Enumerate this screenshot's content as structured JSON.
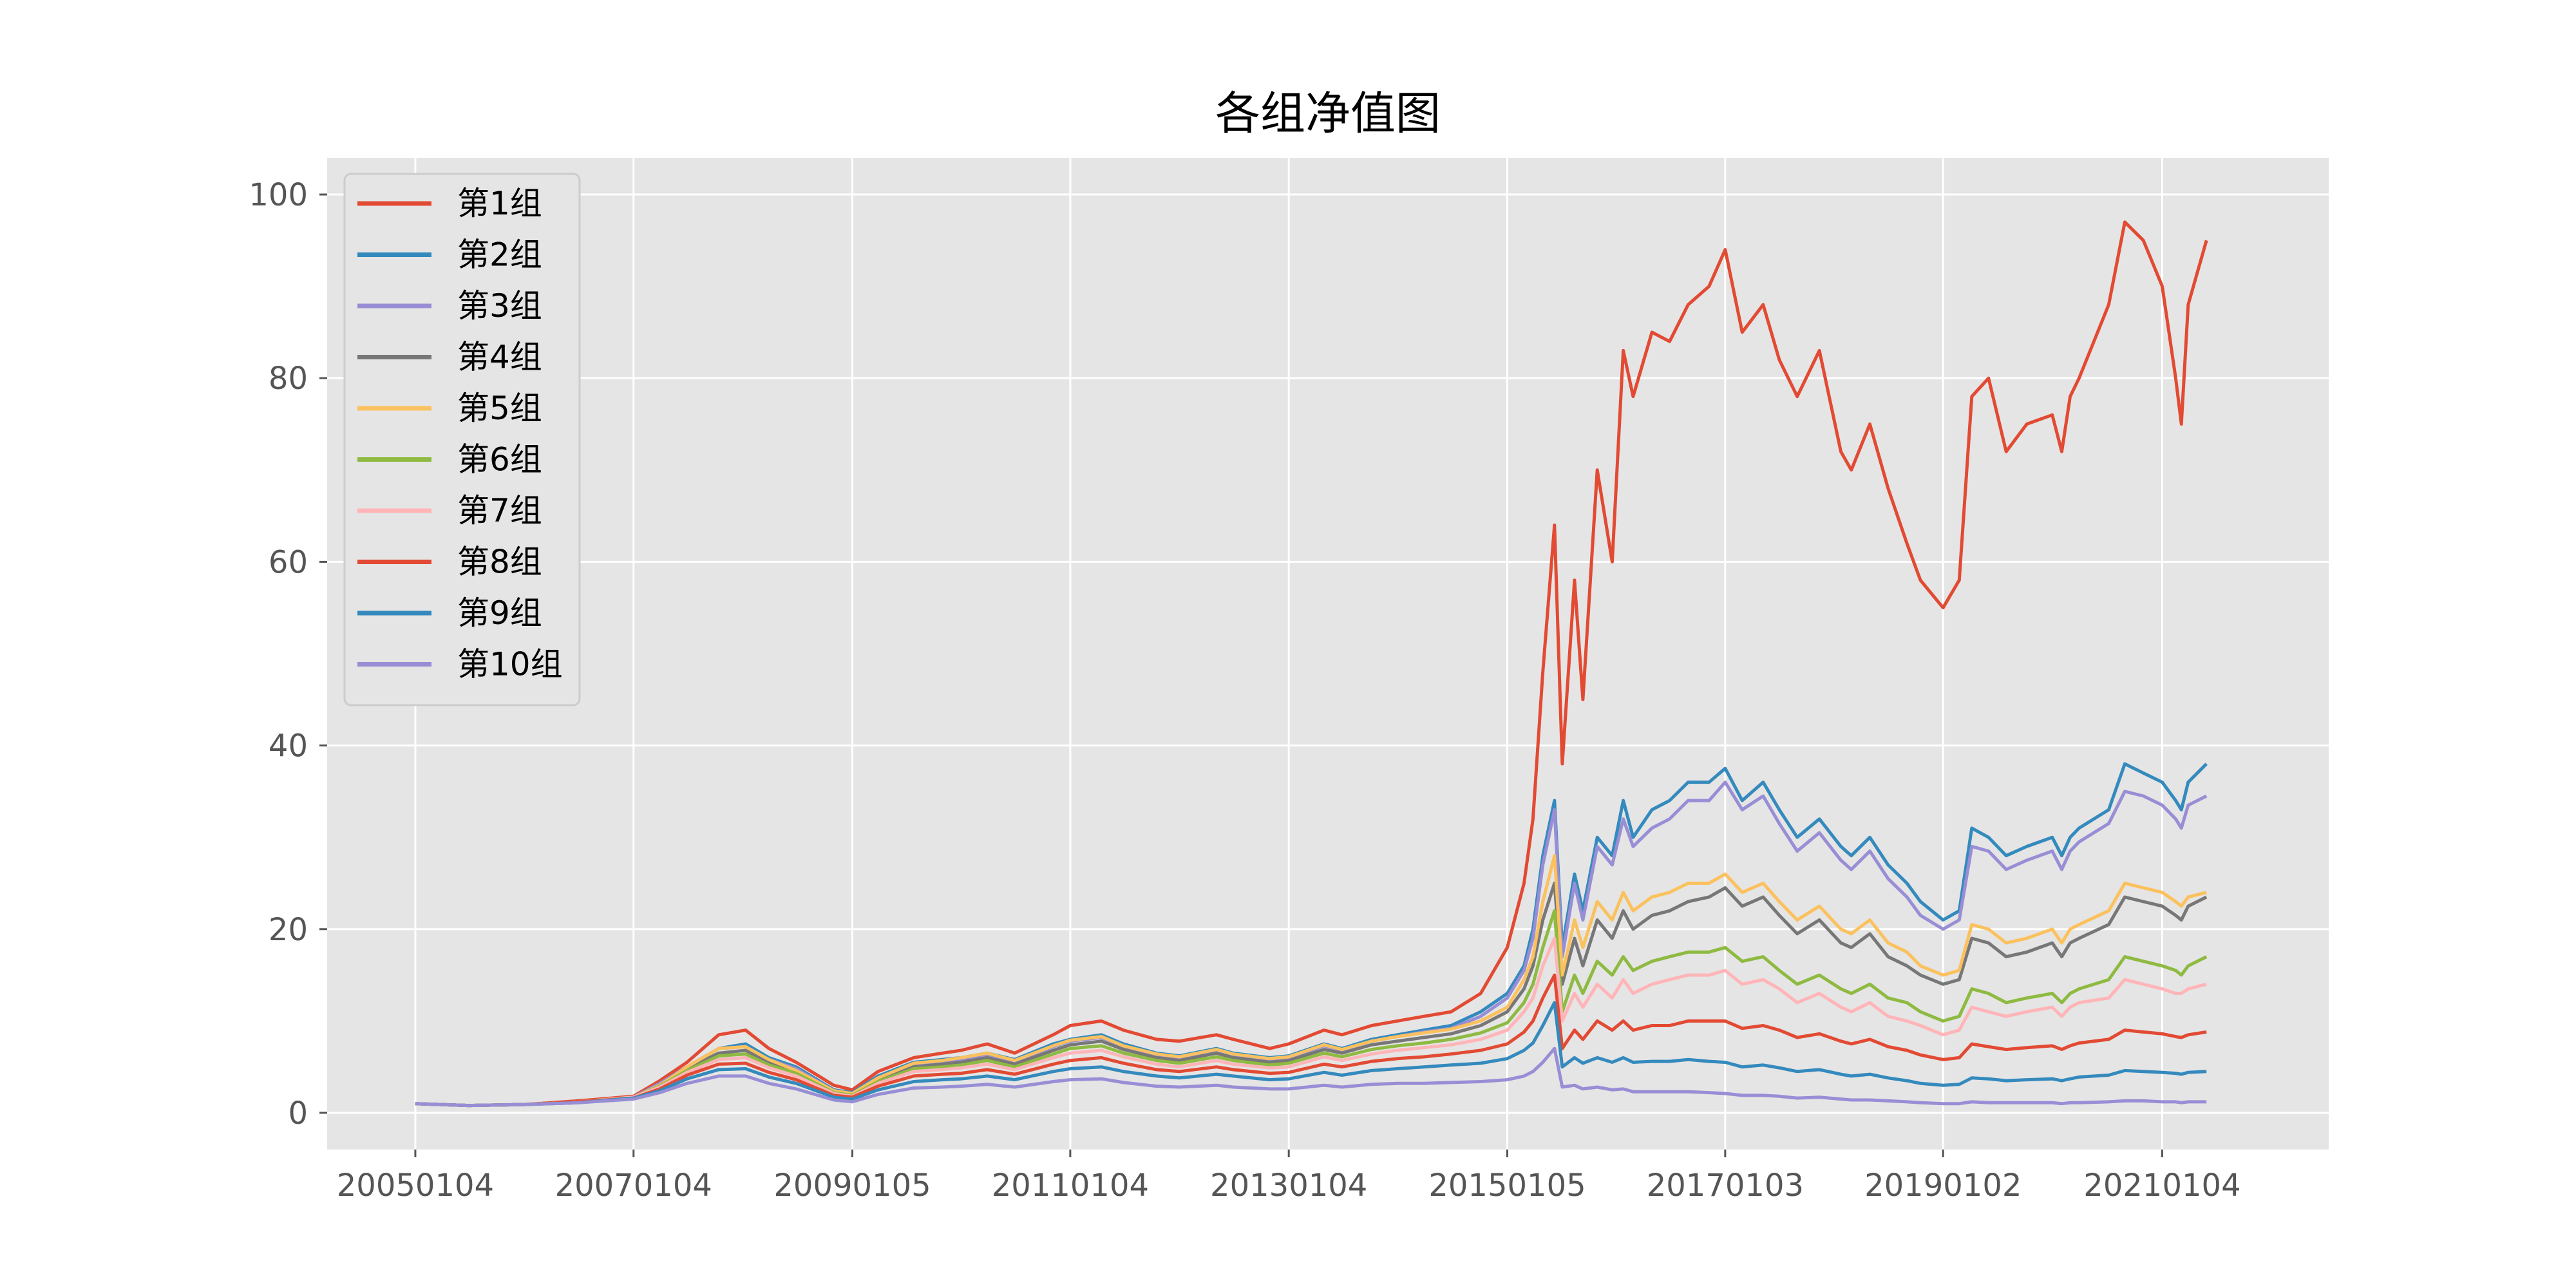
{
  "chart_data": {
    "type": "line",
    "title": "各组净值图",
    "xlabel": "",
    "ylabel": "",
    "x_tick_labels": [
      "20050104",
      "20070104",
      "20090105",
      "20110104",
      "20130104",
      "20150105",
      "20170103",
      "20190102",
      "20210104"
    ],
    "x_tick_dates": [
      "2005-01-04",
      "2007-01-04",
      "2009-01-05",
      "2011-01-04",
      "2013-01-04",
      "2015-01-05",
      "2017-01-03",
      "2019-01-02",
      "2021-01-04"
    ],
    "xlim": [
      "2004-03-15",
      "2022-07-15"
    ],
    "ylim": [
      -4,
      104
    ],
    "y_ticks": [
      0,
      20,
      40,
      60,
      80,
      100
    ],
    "grid": true,
    "background": "#e5e5e5",
    "legend_position": "upper-left",
    "x": [
      "2005-01-04",
      "2005-07-01",
      "2006-01-04",
      "2006-07-03",
      "2007-01-04",
      "2007-04-02",
      "2007-07-02",
      "2007-10-16",
      "2008-01-14",
      "2008-04-01",
      "2008-07-01",
      "2008-11-04",
      "2009-01-05",
      "2009-04-01",
      "2009-07-29",
      "2009-11-02",
      "2010-01-04",
      "2010-04-01",
      "2010-07-02",
      "2010-11-08",
      "2011-01-04",
      "2011-04-18",
      "2011-07-01",
      "2011-10-20",
      "2012-01-04",
      "2012-05-07",
      "2012-07-02",
      "2012-11-01",
      "2013-01-04",
      "2013-05-02",
      "2013-07-01",
      "2013-10-08",
      "2014-01-02",
      "2014-04-01",
      "2014-07-01",
      "2014-10-08",
      "2015-01-05",
      "2015-03-02",
      "2015-04-01",
      "2015-05-04",
      "2015-06-12",
      "2015-07-08",
      "2015-08-18",
      "2015-09-15",
      "2015-11-02",
      "2015-12-22",
      "2016-01-28",
      "2016-03-01",
      "2016-05-03",
      "2016-07-01",
      "2016-09-01",
      "2016-11-10",
      "2017-01-03",
      "2017-03-01",
      "2017-05-10",
      "2017-07-03",
      "2017-09-01",
      "2017-11-14",
      "2018-01-25",
      "2018-03-01",
      "2018-05-02",
      "2018-07-02",
      "2018-09-03",
      "2018-10-18",
      "2019-01-02",
      "2019-02-25",
      "2019-04-08",
      "2019-06-03",
      "2019-08-01",
      "2019-10-09",
      "2020-01-02",
      "2020-02-03",
      "2020-03-02",
      "2020-04-01",
      "2020-07-09",
      "2020-09-01",
      "2020-11-02",
      "2021-01-04",
      "2021-02-18",
      "2021-03-09",
      "2021-04-01",
      "2021-06-01"
    ],
    "series": [
      {
        "name": "第1组",
        "color": "#E24A33",
        "values": [
          1.0,
          0.8,
          0.9,
          1.3,
          1.8,
          3.5,
          5.5,
          8.5,
          9.0,
          7.0,
          5.5,
          3.0,
          2.5,
          4.5,
          6.0,
          6.5,
          6.8,
          7.5,
          6.5,
          8.5,
          9.5,
          10.0,
          9.0,
          8.0,
          7.8,
          8.5,
          8.0,
          7.0,
          7.5,
          9.0,
          8.5,
          9.5,
          10.0,
          10.5,
          11.0,
          13.0,
          18.0,
          25.0,
          32.0,
          48.0,
          64.0,
          38.0,
          58.0,
          45.0,
          70.0,
          60.0,
          83.0,
          78.0,
          85.0,
          84.0,
          88.0,
          90.0,
          94.0,
          85.0,
          88.0,
          82.0,
          78.0,
          83.0,
          72.0,
          70.0,
          75.0,
          68.0,
          62.0,
          58.0,
          55.0,
          58.0,
          78.0,
          80.0,
          72.0,
          75.0,
          76.0,
          72.0,
          78.0,
          80.0,
          88.0,
          97.0,
          95.0,
          90.0,
          80.0,
          75.0,
          88.0,
          95.0
        ]
      },
      {
        "name": "第2组",
        "color": "#348ABD",
        "values": [
          1.0,
          0.8,
          0.9,
          1.2,
          1.7,
          3.2,
          5.0,
          7.0,
          7.5,
          6.0,
          5.0,
          2.5,
          2.2,
          4.0,
          5.5,
          5.8,
          6.0,
          6.5,
          5.8,
          7.5,
          8.0,
          8.5,
          7.5,
          6.5,
          6.2,
          7.0,
          6.5,
          6.0,
          6.2,
          7.5,
          7.0,
          8.0,
          8.5,
          9.0,
          9.5,
          11.0,
          13.0,
          16.0,
          20.0,
          28.0,
          34.0,
          18.0,
          26.0,
          22.0,
          30.0,
          28.0,
          34.0,
          30.0,
          33.0,
          34.0,
          36.0,
          36.0,
          37.5,
          34.0,
          36.0,
          33.0,
          30.0,
          32.0,
          29.0,
          28.0,
          30.0,
          27.0,
          25.0,
          23.0,
          21.0,
          22.0,
          31.0,
          30.0,
          28.0,
          29.0,
          30.0,
          28.0,
          30.0,
          31.0,
          33.0,
          38.0,
          37.0,
          36.0,
          34.0,
          33.0,
          36.0,
          38.0
        ]
      },
      {
        "name": "第3组",
        "color": "#988ED5",
        "values": [
          1.0,
          0.8,
          0.9,
          1.2,
          1.7,
          3.2,
          5.0,
          7.0,
          7.2,
          5.8,
          4.8,
          2.4,
          2.1,
          3.8,
          5.3,
          5.6,
          5.8,
          6.3,
          5.6,
          7.2,
          7.8,
          8.2,
          7.2,
          6.3,
          6.0,
          6.8,
          6.3,
          5.8,
          6.0,
          7.3,
          6.8,
          7.8,
          8.3,
          8.8,
          9.2,
          10.5,
          12.5,
          15.5,
          19.0,
          27.0,
          33.0,
          17.0,
          25.0,
          21.0,
          29.0,
          27.0,
          32.0,
          29.0,
          31.0,
          32.0,
          34.0,
          34.0,
          36.0,
          33.0,
          34.5,
          31.5,
          28.5,
          30.5,
          27.5,
          26.5,
          28.5,
          25.5,
          23.5,
          21.5,
          20.0,
          21.0,
          29.0,
          28.5,
          26.5,
          27.5,
          28.5,
          26.5,
          28.5,
          29.5,
          31.5,
          35.0,
          34.5,
          33.5,
          32.0,
          31.0,
          33.5,
          34.5
        ]
      },
      {
        "name": "第4组",
        "color": "#777777",
        "values": [
          1.0,
          0.8,
          0.9,
          1.2,
          1.7,
          3.0,
          4.8,
          6.5,
          6.8,
          5.5,
          4.5,
          2.3,
          2.0,
          3.6,
          5.0,
          5.3,
          5.5,
          6.0,
          5.3,
          6.8,
          7.4,
          7.8,
          6.9,
          6.0,
          5.7,
          6.5,
          6.0,
          5.5,
          5.7,
          6.9,
          6.5,
          7.4,
          7.8,
          8.2,
          8.6,
          9.5,
          11.0,
          13.5,
          16.0,
          21.0,
          25.0,
          14.0,
          19.0,
          16.0,
          21.0,
          19.0,
          22.0,
          20.0,
          21.5,
          22.0,
          23.0,
          23.5,
          24.5,
          22.5,
          23.5,
          21.5,
          19.5,
          21.0,
          18.5,
          18.0,
          19.5,
          17.0,
          16.0,
          15.0,
          14.0,
          14.5,
          19.0,
          18.5,
          17.0,
          17.5,
          18.5,
          17.0,
          18.5,
          19.0,
          20.5,
          23.5,
          23.0,
          22.5,
          21.5,
          21.0,
          22.5,
          23.5
        ]
      },
      {
        "name": "第5组",
        "color": "#FBC15E",
        "values": [
          1.0,
          0.8,
          0.9,
          1.2,
          1.7,
          3.0,
          5.0,
          7.0,
          7.2,
          5.8,
          4.6,
          2.4,
          2.1,
          3.8,
          5.4,
          5.7,
          6.0,
          6.5,
          5.7,
          7.3,
          7.9,
          8.3,
          7.3,
          6.4,
          6.1,
          6.9,
          6.4,
          5.9,
          6.1,
          7.4,
          6.9,
          7.8,
          8.3,
          8.7,
          9.1,
          10.0,
          11.5,
          14.5,
          17.0,
          23.0,
          28.0,
          15.0,
          21.0,
          18.0,
          23.0,
          21.0,
          24.0,
          22.0,
          23.5,
          24.0,
          25.0,
          25.0,
          26.0,
          24.0,
          25.0,
          23.0,
          21.0,
          22.5,
          20.0,
          19.5,
          21.0,
          18.5,
          17.5,
          16.0,
          15.0,
          15.5,
          20.5,
          20.0,
          18.5,
          19.0,
          20.0,
          18.5,
          20.0,
          20.5,
          22.0,
          25.0,
          24.5,
          24.0,
          23.0,
          22.5,
          23.5,
          24.0
        ]
      },
      {
        "name": "第6组",
        "color": "#8EBA42",
        "values": [
          1.0,
          0.8,
          0.9,
          1.2,
          1.7,
          2.9,
          4.6,
          6.2,
          6.4,
          5.2,
          4.3,
          2.2,
          1.9,
          3.4,
          4.8,
          5.0,
          5.2,
          5.7,
          5.0,
          6.4,
          7.0,
          7.3,
          6.5,
          5.7,
          5.4,
          6.1,
          5.7,
          5.2,
          5.4,
          6.5,
          6.1,
          6.9,
          7.3,
          7.6,
          8.0,
          8.7,
          9.8,
          12.0,
          14.0,
          18.0,
          22.0,
          11.0,
          15.0,
          13.0,
          16.5,
          15.0,
          17.0,
          15.5,
          16.5,
          17.0,
          17.5,
          17.5,
          18.0,
          16.5,
          17.0,
          15.5,
          14.0,
          15.0,
          13.5,
          13.0,
          14.0,
          12.5,
          12.0,
          11.0,
          10.0,
          10.5,
          13.5,
          13.0,
          12.0,
          12.5,
          13.0,
          12.0,
          13.0,
          13.5,
          14.5,
          17.0,
          16.5,
          16.0,
          15.5,
          15.0,
          16.0,
          17.0
        ]
      },
      {
        "name": "第7组",
        "color": "#FFB5B8",
        "values": [
          1.0,
          0.8,
          0.9,
          1.2,
          1.7,
          2.8,
          4.4,
          5.8,
          6.0,
          4.9,
          4.0,
          2.1,
          1.8,
          3.2,
          4.5,
          4.7,
          4.9,
          5.3,
          4.7,
          6.0,
          6.5,
          6.8,
          6.1,
          5.3,
          5.0,
          5.7,
          5.3,
          4.9,
          5.0,
          6.1,
          5.7,
          6.4,
          6.8,
          7.1,
          7.4,
          8.0,
          9.0,
          11.0,
          12.5,
          16.0,
          19.0,
          10.0,
          13.0,
          11.5,
          14.0,
          12.5,
          14.5,
          13.0,
          14.0,
          14.5,
          15.0,
          15.0,
          15.5,
          14.0,
          14.5,
          13.5,
          12.0,
          13.0,
          11.5,
          11.0,
          12.0,
          10.5,
          10.0,
          9.5,
          8.5,
          9.0,
          11.5,
          11.0,
          10.5,
          11.0,
          11.5,
          10.5,
          11.5,
          12.0,
          12.5,
          14.5,
          14.0,
          13.5,
          13.0,
          13.0,
          13.5,
          14.0
        ]
      },
      {
        "name": "第8组",
        "color": "#E24A33",
        "values": [
          1.0,
          0.8,
          0.9,
          1.2,
          1.6,
          2.6,
          4.1,
          5.3,
          5.4,
          4.4,
          3.6,
          1.9,
          1.7,
          2.9,
          4.0,
          4.2,
          4.3,
          4.7,
          4.2,
          5.3,
          5.7,
          6.0,
          5.4,
          4.7,
          4.5,
          5.0,
          4.7,
          4.3,
          4.4,
          5.3,
          5.0,
          5.6,
          5.9,
          6.1,
          6.4,
          6.8,
          7.5,
          8.8,
          10.0,
          12.5,
          15.0,
          7.0,
          9.0,
          8.0,
          10.0,
          9.0,
          10.0,
          9.0,
          9.5,
          9.5,
          10.0,
          10.0,
          10.0,
          9.2,
          9.5,
          9.0,
          8.2,
          8.6,
          7.8,
          7.5,
          8.0,
          7.2,
          6.8,
          6.3,
          5.8,
          6.0,
          7.5,
          7.2,
          6.9,
          7.1,
          7.3,
          6.9,
          7.3,
          7.6,
          8.0,
          9.0,
          8.8,
          8.6,
          8.3,
          8.2,
          8.5,
          8.8
        ]
      },
      {
        "name": "第9组",
        "color": "#348ABD",
        "values": [
          1.0,
          0.8,
          0.9,
          1.1,
          1.6,
          2.4,
          3.7,
          4.7,
          4.8,
          3.9,
          3.2,
          1.7,
          1.5,
          2.5,
          3.4,
          3.6,
          3.7,
          4.0,
          3.6,
          4.5,
          4.8,
          5.0,
          4.5,
          4.0,
          3.8,
          4.2,
          4.0,
          3.6,
          3.7,
          4.4,
          4.1,
          4.6,
          4.8,
          5.0,
          5.2,
          5.4,
          5.9,
          6.8,
          7.6,
          9.5,
          12.0,
          5.0,
          6.0,
          5.4,
          6.0,
          5.5,
          6.0,
          5.5,
          5.6,
          5.6,
          5.8,
          5.6,
          5.5,
          5.0,
          5.2,
          4.9,
          4.5,
          4.7,
          4.2,
          4.0,
          4.2,
          3.8,
          3.5,
          3.2,
          3.0,
          3.1,
          3.8,
          3.7,
          3.5,
          3.6,
          3.7,
          3.5,
          3.7,
          3.9,
          4.1,
          4.6,
          4.5,
          4.4,
          4.3,
          4.2,
          4.4,
          4.5
        ]
      },
      {
        "name": "第10组",
        "color": "#988ED5",
        "values": [
          1.0,
          0.8,
          0.9,
          1.1,
          1.5,
          2.2,
          3.2,
          4.0,
          4.0,
          3.2,
          2.6,
          1.4,
          1.2,
          2.0,
          2.7,
          2.8,
          2.9,
          3.1,
          2.8,
          3.4,
          3.6,
          3.7,
          3.3,
          2.9,
          2.8,
          3.0,
          2.8,
          2.6,
          2.6,
          3.0,
          2.8,
          3.1,
          3.2,
          3.2,
          3.3,
          3.4,
          3.6,
          4.0,
          4.5,
          5.5,
          7.0,
          2.8,
          3.0,
          2.6,
          2.8,
          2.5,
          2.6,
          2.3,
          2.3,
          2.3,
          2.3,
          2.2,
          2.1,
          1.9,
          1.9,
          1.8,
          1.6,
          1.7,
          1.5,
          1.4,
          1.4,
          1.3,
          1.2,
          1.1,
          1.0,
          1.0,
          1.2,
          1.1,
          1.1,
          1.1,
          1.1,
          1.0,
          1.1,
          1.1,
          1.2,
          1.3,
          1.3,
          1.2,
          1.2,
          1.1,
          1.2,
          1.2
        ]
      }
    ]
  }
}
